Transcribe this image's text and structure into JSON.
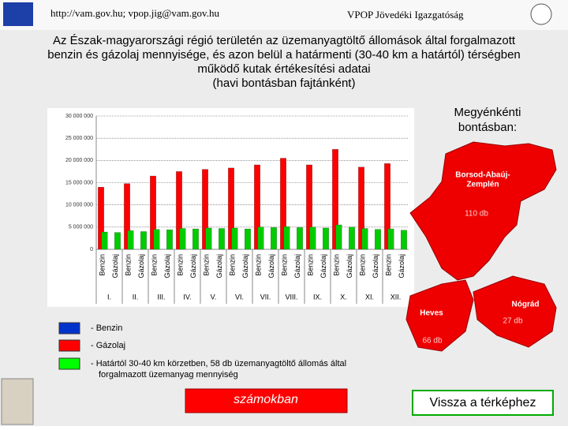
{
  "header": {
    "contact": "http://vam.gov.hu; vpop.jig@vam.gov.hu",
    "organization": "VPOP Jövedéki Igazgatóság"
  },
  "title_lines": [
    "Az Észak-magyarországi régió területén az üzemanyagtöltő állomások által forgalmazott",
    "benzin és gázolaj mennyisége, és azon belül a határmenti (30-40 km a határtól) térségben",
    "működő kutak értékesítési adatai",
    "(havi bontásban fajtánként)"
  ],
  "chart_data": {
    "type": "bar",
    "categories": [
      "Benzin",
      "Gázolaj",
      "Benzin",
      "Gázolaj",
      "Benzin",
      "Gázolaj",
      "Benzin",
      "Gázolaj",
      "Benzin",
      "Gázolaj",
      "Benzin",
      "Gázolaj",
      "Benzin",
      "Gázolaj",
      "Benzin",
      "Gázolaj",
      "Benzin",
      "Gázolaj",
      "Benzin",
      "Gázolaj",
      "Benzin",
      "Gázolaj",
      "Benzin",
      "Gázolaj"
    ],
    "groups": [
      "I.",
      "II.",
      "III.",
      "IV.",
      "V.",
      "VI.",
      "VII.",
      "VIII.",
      "IX.",
      "X.",
      "XI.",
      "XII."
    ],
    "series": [
      {
        "color": "#ff0000",
        "values": [
          14000000,
          null,
          14800000,
          null,
          16500000,
          null,
          17500000,
          null,
          18000000,
          null,
          18300000,
          null,
          19000000,
          null,
          20500000,
          null,
          19000000,
          null,
          22500000,
          null,
          18500000,
          null,
          19300000,
          null
        ]
      },
      {
        "color": "#00cc00",
        "values": [
          3900000,
          3800000,
          4200000,
          4000000,
          4500000,
          4400000,
          4700000,
          4600000,
          4800000,
          4700000,
          4800000,
          4600000,
          5000000,
          4900000,
          5100000,
          4900000,
          5000000,
          4800000,
          5500000,
          5000000,
          4700000,
          4500000,
          4600000,
          4300000
        ]
      }
    ],
    "ylim": [
      0,
      30000000
    ],
    "yticks": [
      0,
      {
        "value": 5000000,
        "label": "5 000 000"
      },
      {
        "value": 10000000,
        "label": "10 000 000"
      },
      {
        "value": 15000000,
        "label": "15 000 000"
      },
      {
        "value": 20000000,
        "label": "20 000 000"
      },
      {
        "value": 25000000,
        "label": "25 000 000"
      },
      {
        "value": 30000000,
        "label": "30 000 000"
      }
    ],
    "grid": true
  },
  "map": {
    "heading_lines": [
      "Megyénkénti",
      "bontásban:"
    ],
    "regions": [
      {
        "name_lines": [
          "Borsod-Abaúj-",
          "Zemplén"
        ],
        "count": "110 db"
      },
      {
        "name_lines": [
          "Heves"
        ],
        "count": "66 db"
      },
      {
        "name_lines": [
          "Nógrád"
        ],
        "count": "27 db"
      }
    ]
  },
  "legend": [
    {
      "color": "#0033cc",
      "lines": [
        "- Benzin"
      ]
    },
    {
      "color": "#ff0000",
      "lines": [
        "- Gázolaj"
      ]
    },
    {
      "color": "#00ff00",
      "lines": [
        "- Határtól 30-40 km körzetben, 58 db üzemanyagtöltő állomás által",
        "forgalmazott üzemanyag mennyiség"
      ]
    }
  ],
  "buttons": {
    "numbers": "számokban",
    "back": "Vissza a térképhez"
  }
}
